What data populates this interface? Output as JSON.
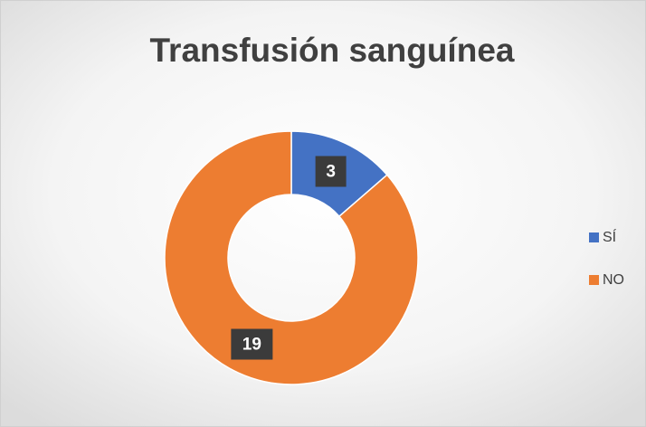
{
  "chart_data": {
    "type": "donut",
    "title": "Transfusión sanguínea",
    "categories": [
      "SÍ",
      "NO"
    ],
    "values": [
      3,
      19
    ],
    "colors": [
      "#4472c4",
      "#ed7d31"
    ],
    "legend": "right"
  }
}
